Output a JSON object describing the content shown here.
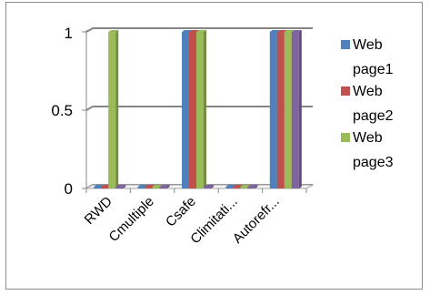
{
  "chart_data": {
    "type": "bar",
    "style": "3d-clustered-column",
    "categories": [
      "RWD",
      "Cmultiple",
      "Csafe",
      "Climitati...",
      "Autorefr..."
    ],
    "series": [
      {
        "name": "Web page1",
        "color": "#4f81bd",
        "values": [
          0,
          0,
          1,
          0,
          1
        ]
      },
      {
        "name": "Web page2",
        "color": "#c0504d",
        "values": [
          0,
          0,
          1,
          0,
          1
        ]
      },
      {
        "name": "Web page3",
        "color": "#9bbb59",
        "values": [
          1,
          0,
          1,
          0,
          1
        ]
      },
      {
        "name": "",
        "color": "#8064a2",
        "values": [
          0,
          0,
          0,
          0,
          1
        ]
      }
    ],
    "yticks": [
      "0",
      "0.5",
      "1"
    ],
    "ylim": [
      0,
      1
    ],
    "grid": true,
    "legend_position": "right",
    "legend_lines": [
      [
        "Web",
        "page1"
      ],
      [
        "Web",
        "page2"
      ],
      [
        "Web",
        "page3"
      ]
    ]
  }
}
